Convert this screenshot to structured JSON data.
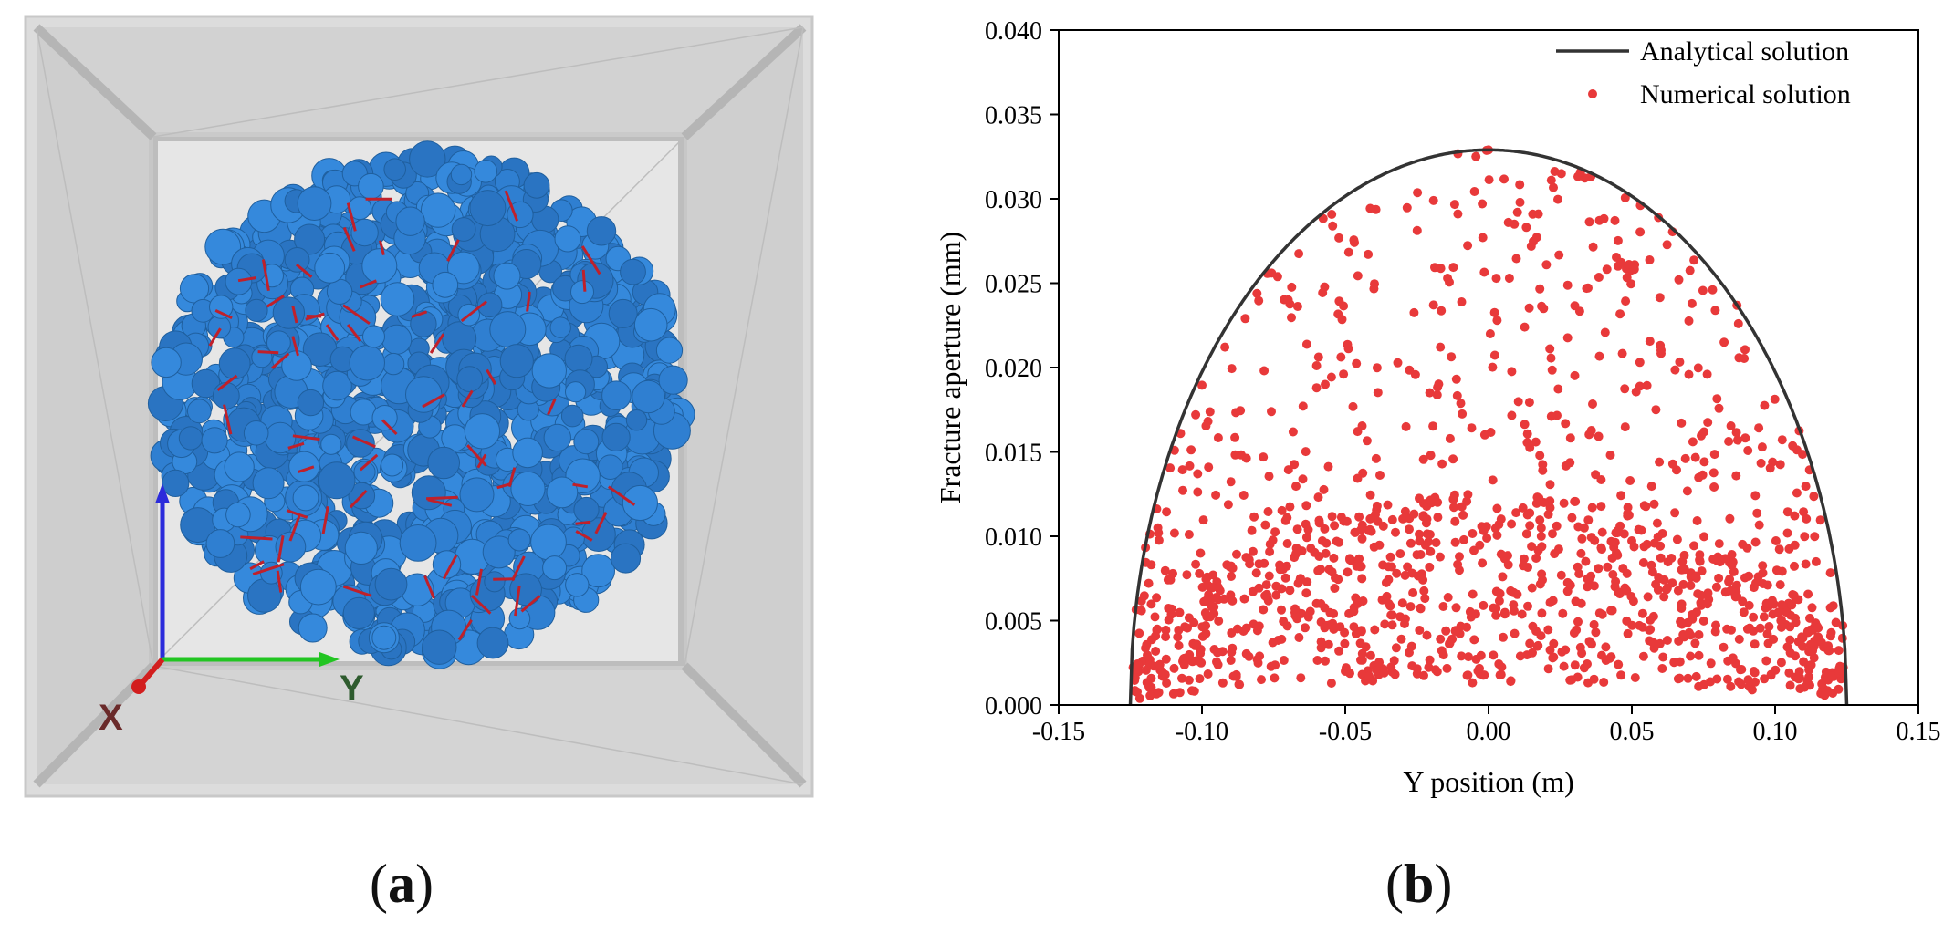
{
  "figure": {
    "panel_a_label": "a",
    "panel_b_label": "b",
    "axis_x_label": "X",
    "axis_y_label": "Y",
    "colors": {
      "particles": "#2f7fd1",
      "cracks": "#c0202a",
      "box": "#d8d8d8",
      "axis_z": "#2b2bdb",
      "axis_y": "#22c522",
      "axis_x": "#d21e1e"
    }
  },
  "chart_data": {
    "type": "scatter",
    "title": "",
    "xlabel": "Y position (m)",
    "ylabel": "Fracture aperture (mm)",
    "xlim": [
      -0.15,
      0.15
    ],
    "ylim": [
      0.0,
      0.04
    ],
    "x_ticks": [
      -0.15,
      -0.1,
      -0.05,
      0.0,
      0.05,
      0.1,
      0.15
    ],
    "x_tick_labels": [
      "-0.15",
      "-0.10",
      "-0.05",
      "0.00",
      "0.05",
      "0.10",
      "0.15"
    ],
    "y_ticks": [
      0.0,
      0.005,
      0.01,
      0.015,
      0.02,
      0.025,
      0.03,
      0.035,
      0.04
    ],
    "y_tick_labels": [
      "0.000",
      "0.005",
      "0.010",
      "0.015",
      "0.020",
      "0.025",
      "0.030",
      "0.035",
      "0.040"
    ],
    "grid": false,
    "legend": "top-right",
    "series": [
      {
        "name": "Analytical solution",
        "kind": "line",
        "color": "#333333",
        "function": "w = w0 * (1 - (y/a)^2)^0.5",
        "w0": 0.0329,
        "a": 0.125
      },
      {
        "name": "Numerical solution",
        "kind": "scatter",
        "color": "#e8393a",
        "points": [
          [
            0.0,
            0.0329
          ]
        ]
      }
    ]
  }
}
